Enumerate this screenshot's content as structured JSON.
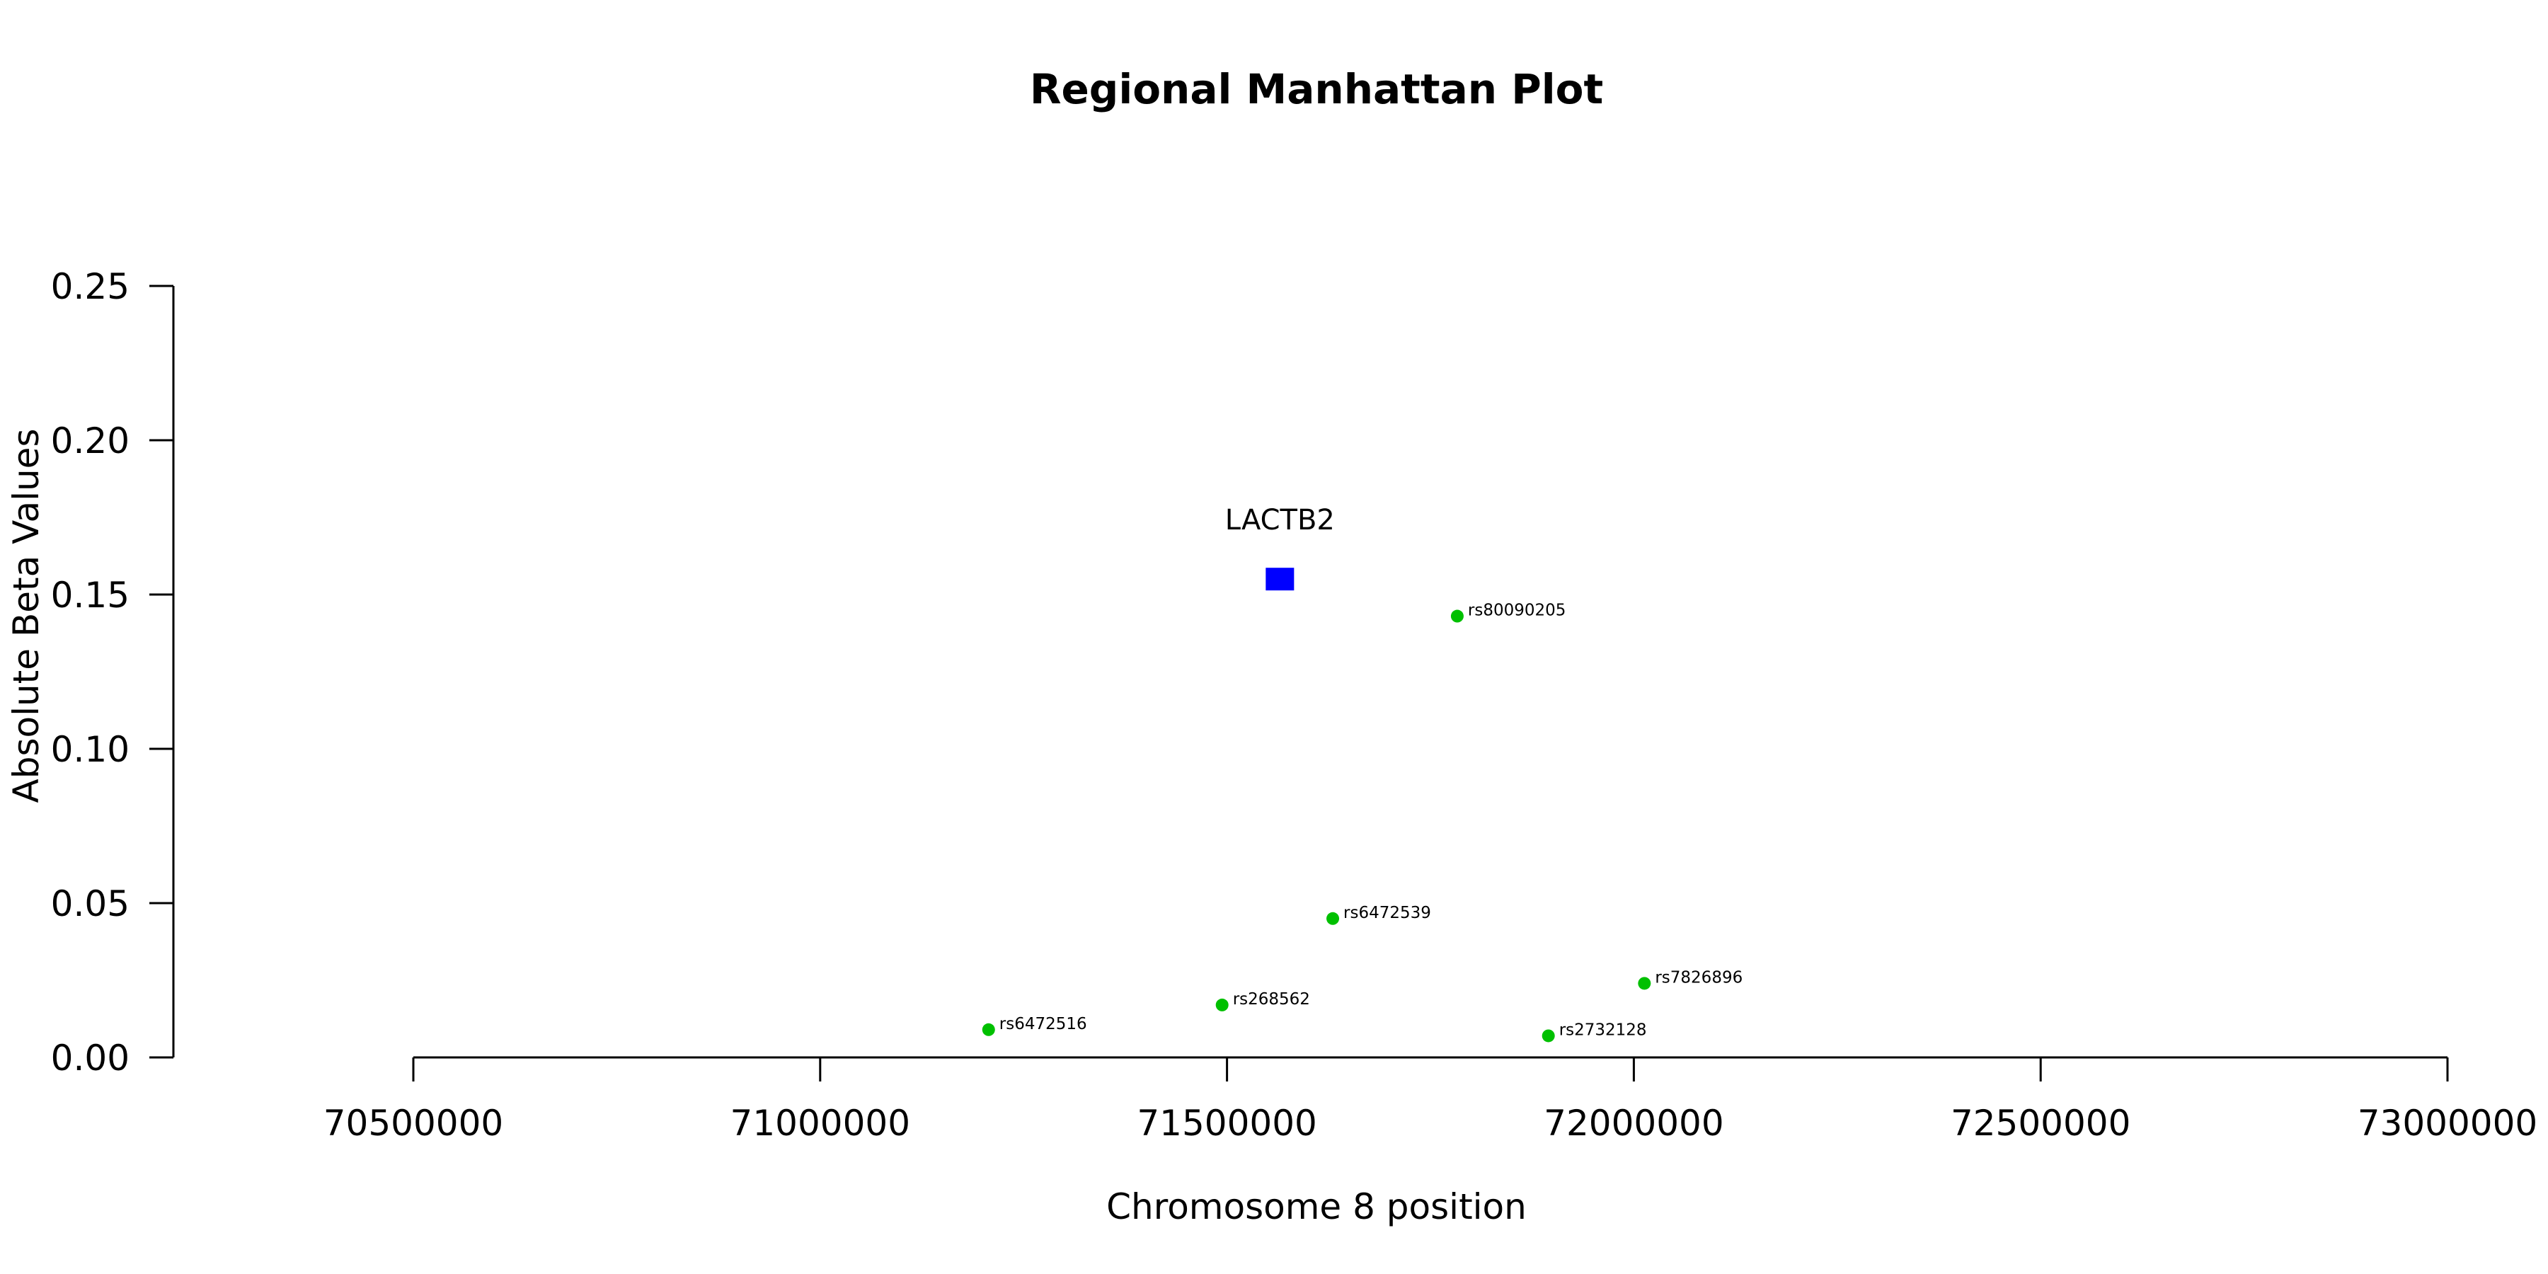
{
  "chart_data": {
    "type": "scatter",
    "title": "Regional Manhattan Plot",
    "xlabel": "Chromosome 8 position",
    "ylabel": "Absolute Beta Values",
    "xlim": [
      70500000,
      73000000
    ],
    "ylim": [
      0,
      0.25
    ],
    "x_ticks": [
      70500000,
      71000000,
      71500000,
      72000000,
      72500000,
      73000000
    ],
    "x_tick_labels": [
      "70500000",
      "71000000",
      "71500000",
      "72000000",
      "72500000",
      "73000000"
    ],
    "y_ticks": [
      0,
      0.05,
      0.1,
      0.15,
      0.2,
      0.25
    ],
    "y_tick_labels": [
      "0.00",
      "0.05",
      "0.10",
      "0.15",
      "0.20",
      "0.25"
    ],
    "grid": false,
    "gene": {
      "name": "LACTB2",
      "x": 71565000,
      "y": 0.155,
      "color": "#0000ff",
      "marker": "square"
    },
    "snps": [
      {
        "label": "rs80090205",
        "x": 71783000,
        "y": 0.143
      },
      {
        "label": "rs6472539",
        "x": 71630000,
        "y": 0.045
      },
      {
        "label": "rs7826896",
        "x": 72013000,
        "y": 0.024
      },
      {
        "label": "rs268562",
        "x": 71494000,
        "y": 0.017
      },
      {
        "label": "rs6472516",
        "x": 71207000,
        "y": 0.009
      },
      {
        "label": "rs2732128",
        "x": 71895000,
        "y": 0.007
      }
    ],
    "snp_color": "#00c000"
  }
}
